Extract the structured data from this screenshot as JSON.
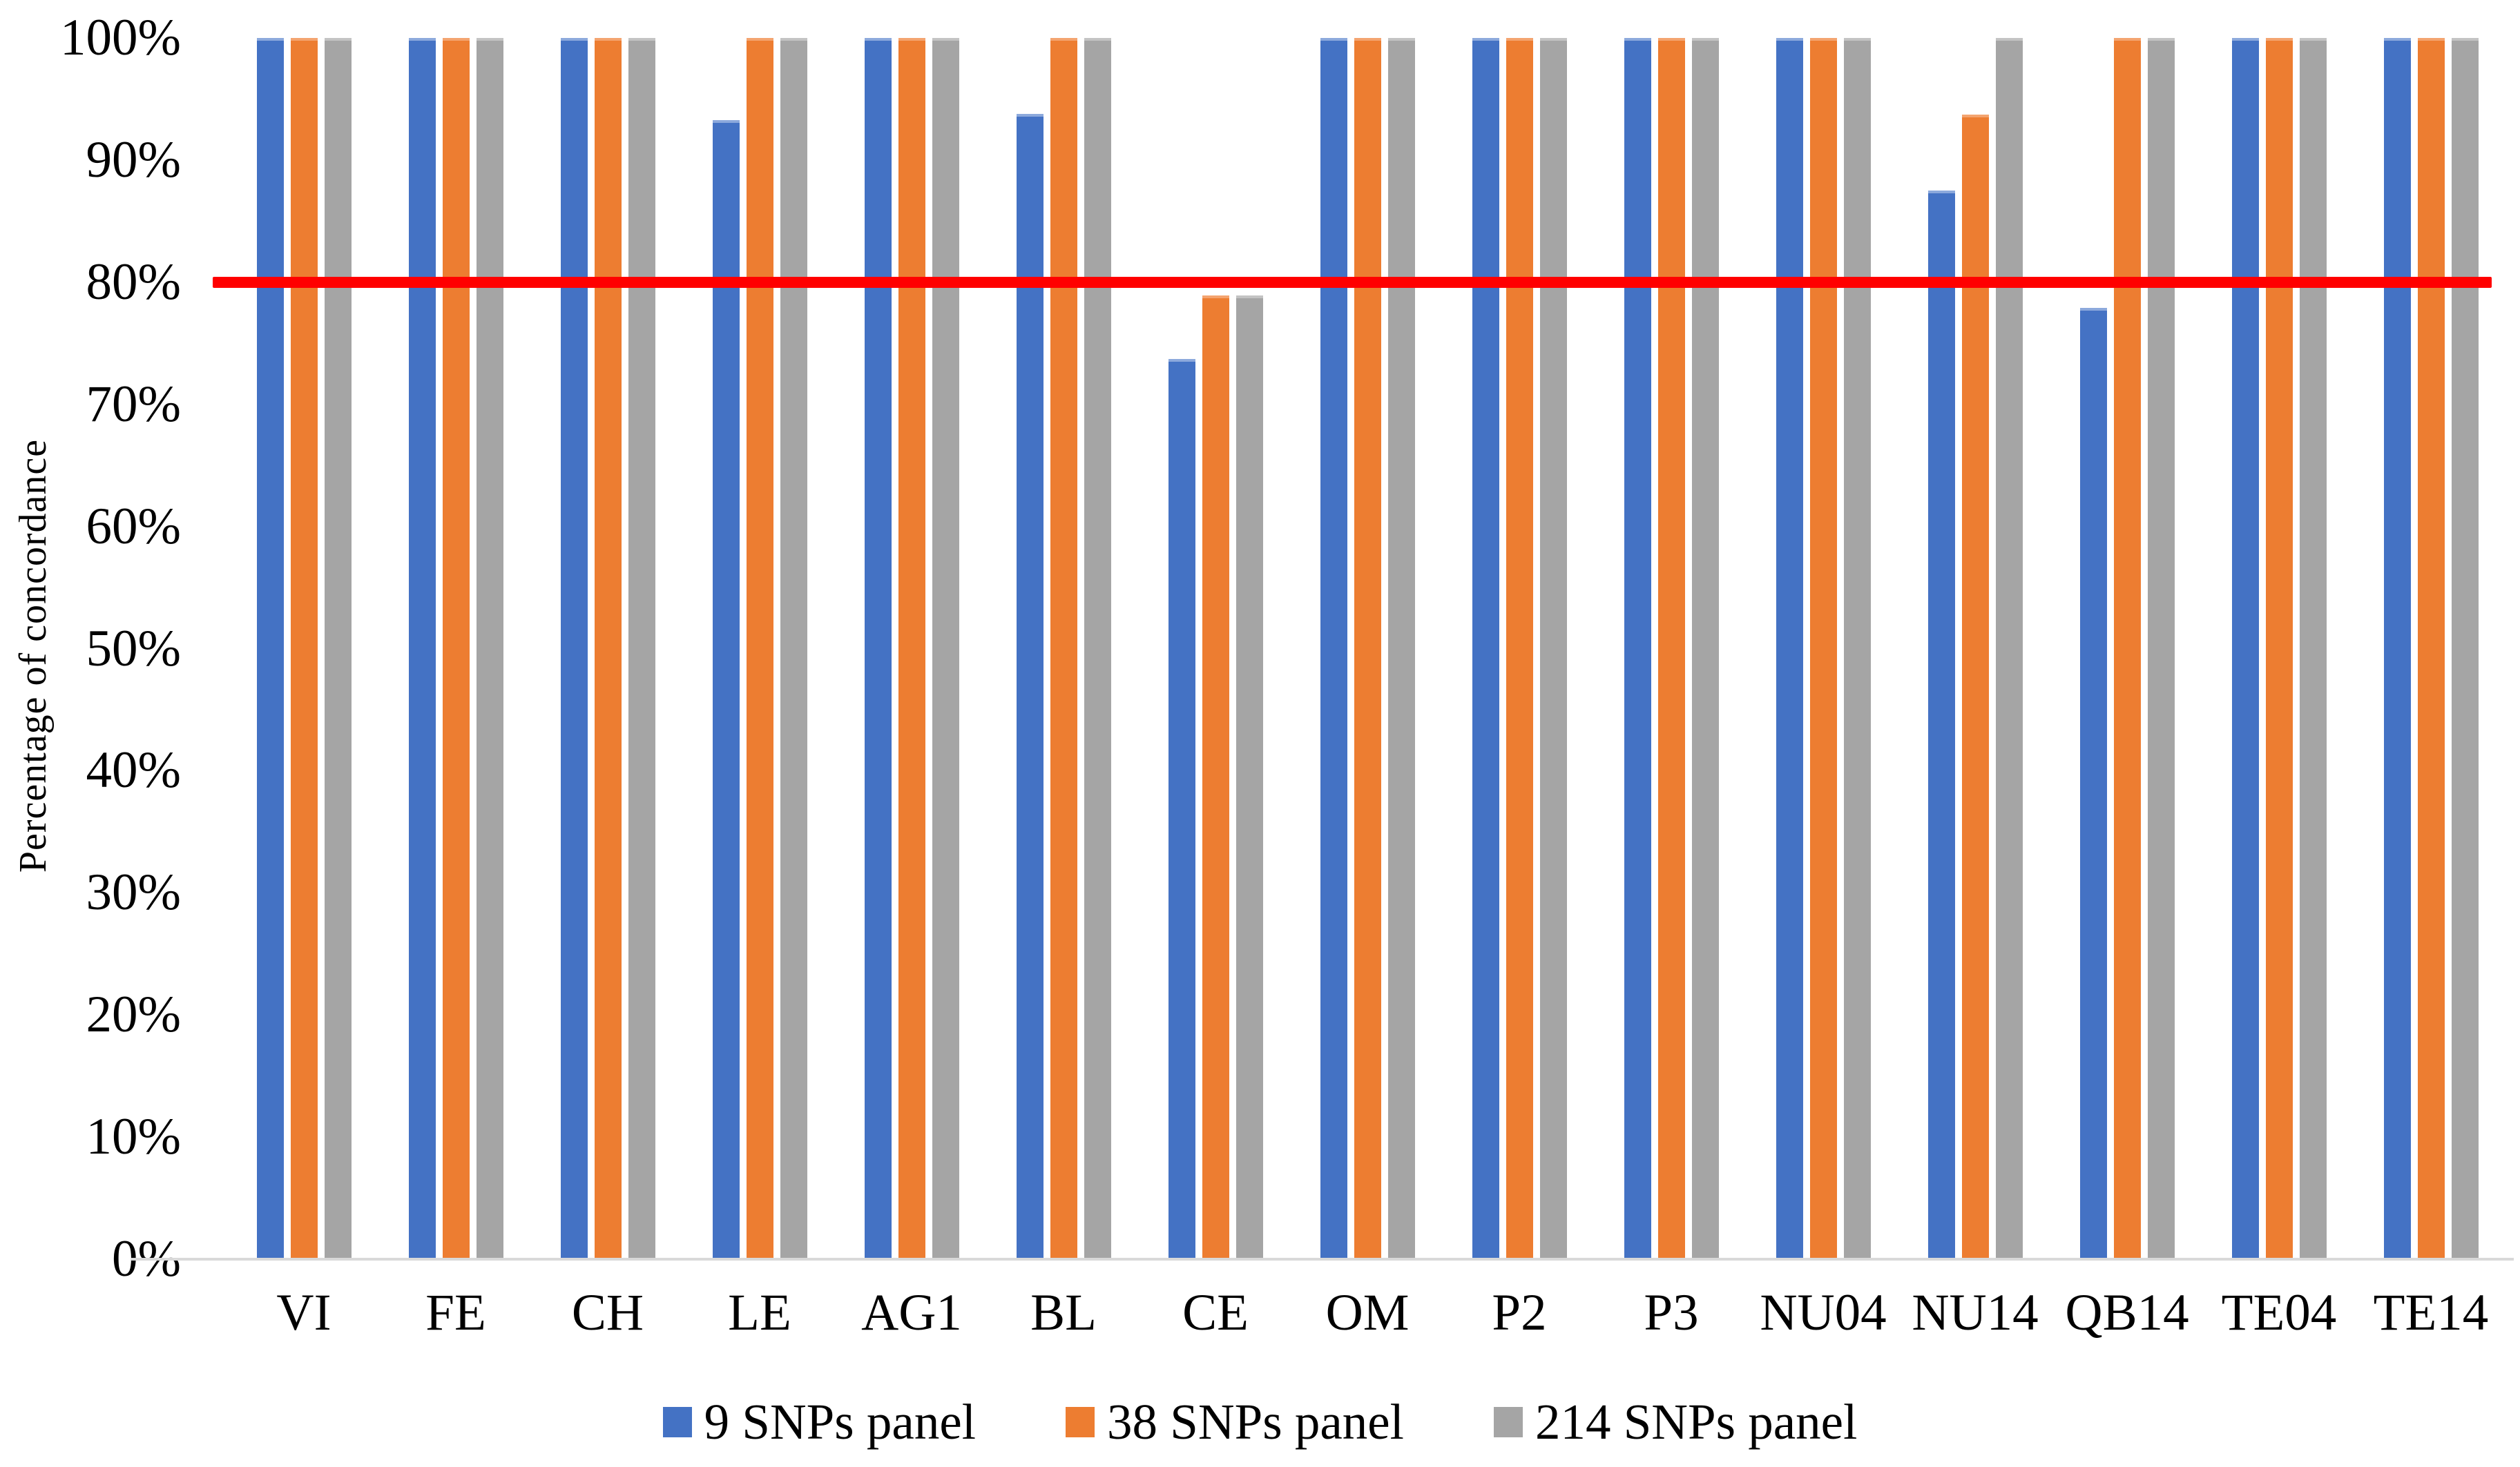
{
  "chart_data": {
    "type": "bar",
    "title": "",
    "xlabel": "",
    "ylabel": "Percentage of concordance",
    "categories": [
      "VI",
      "FE",
      "CH",
      "LE",
      "AG1",
      "BL",
      "CE",
      "OM",
      "P2",
      "P3",
      "NU04",
      "NU14",
      "QB14",
      "TE04",
      "TE14"
    ],
    "series": [
      {
        "name": "9 SNPs panel",
        "color": "#4472C4",
        "edge_color": "#8CA9DC",
        "values": [
          100,
          100,
          100,
          93.3,
          100,
          93.8,
          73.7,
          100,
          100,
          100,
          100,
          87.5,
          77.9,
          100,
          100
        ]
      },
      {
        "name": "38 SNPs panel",
        "color": "#ED7D31",
        "edge_color": "#F4A46F",
        "values": [
          100,
          100,
          100,
          100,
          100,
          100,
          78.9,
          100,
          100,
          100,
          100,
          93.7,
          100,
          100,
          100
        ]
      },
      {
        "name": "214 SNPs panel",
        "color": "#A5A5A5",
        "edge_color": "#C3C3C3",
        "values": [
          100,
          100,
          100,
          100,
          100,
          100,
          78.9,
          100,
          100,
          100,
          100,
          100,
          100,
          100,
          100
        ]
      }
    ],
    "y_axis": {
      "min": 0,
      "max": 100,
      "step": 10,
      "tick_labels": [
        "0%",
        "10%",
        "20%",
        "30%",
        "40%",
        "50%",
        "60%",
        "70%",
        "80%",
        "90%",
        "100%"
      ]
    },
    "threshold_line": {
      "value": 80,
      "color": "#FF0000"
    },
    "legend_position": "bottom",
    "grid": false,
    "axis_line_color": "#D9D9D9",
    "text_color": "#000000",
    "background_color": "#FFFFFF"
  }
}
